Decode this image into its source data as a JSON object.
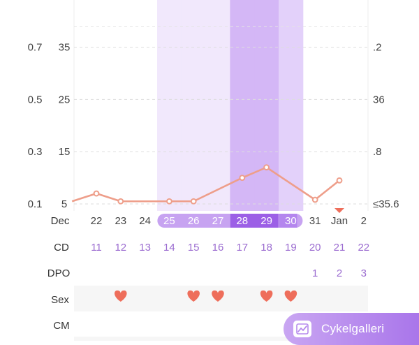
{
  "chart_data": {
    "type": "line",
    "left_axis_outer_ticks": [
      "0.7",
      "0.5",
      "0.3",
      "0.1"
    ],
    "left_axis_inner_ticks": [
      "35",
      "25",
      "15",
      "5"
    ],
    "right_axis_ticks": [
      ".2",
      "36",
      ".8",
      "≤35.6"
    ],
    "tick_values": [
      35,
      25,
      15,
      5
    ],
    "ylim": [
      0,
      43
    ],
    "cycle_days": [
      {
        "date": "22",
        "cd": "11",
        "dpo": "",
        "sex": false,
        "fertile": "none"
      },
      {
        "date": "23",
        "cd": "12",
        "dpo": "",
        "sex": true,
        "fertile": "none"
      },
      {
        "date": "24",
        "cd": "13",
        "dpo": "",
        "sex": false,
        "fertile": "none"
      },
      {
        "date": "25",
        "cd": "14",
        "dpo": "",
        "sex": false,
        "fertile": "light"
      },
      {
        "date": "26",
        "cd": "15",
        "dpo": "",
        "sex": true,
        "fertile": "light"
      },
      {
        "date": "27",
        "cd": "16",
        "dpo": "",
        "sex": true,
        "fertile": "light"
      },
      {
        "date": "28",
        "cd": "17",
        "dpo": "",
        "sex": false,
        "fertile": "peak"
      },
      {
        "date": "29",
        "cd": "18",
        "dpo": "",
        "sex": true,
        "fertile": "peak"
      },
      {
        "date": "30",
        "cd": "19",
        "dpo": "",
        "sex": true,
        "fertile": "medium"
      },
      {
        "date": "31",
        "cd": "20",
        "dpo": "1",
        "sex": false,
        "fertile": "none"
      },
      {
        "date": "Jan",
        "cd": "21",
        "dpo": "2",
        "sex": false,
        "fertile": "none"
      },
      {
        "date": "2",
        "cd": "22",
        "dpo": "3",
        "sex": false,
        "fertile": "none"
      }
    ],
    "series": [
      {
        "values": [
          5.5,
          7,
          5.5,
          null,
          5.5,
          5.5,
          null,
          10,
          12,
          null,
          5.8,
          9.5
        ]
      }
    ],
    "x_start_index": -1,
    "row_labels": {
      "month": "Dec",
      "cd": "CD",
      "dpo": "DPO",
      "sex": "Sex",
      "cm": "CM"
    },
    "colors": {
      "line": "#ee9e8a",
      "heart": "#ee6e5b",
      "marker": "#ee6e5b",
      "fertile_light": "#f1e8fc",
      "fertile_medium": "#e3d1fa",
      "fertile_peak": "#d4b7f6",
      "pill_light": "#c7a3f1",
      "pill_peak": "#9c5fe6",
      "pill_medium": "#b486ee",
      "cd_text": "#9b6cd0",
      "dpo_text": "#9b6cd0"
    }
  },
  "gallery_button": {
    "label": "Cykelgalleri",
    "icon": "chart-gallery-icon"
  }
}
